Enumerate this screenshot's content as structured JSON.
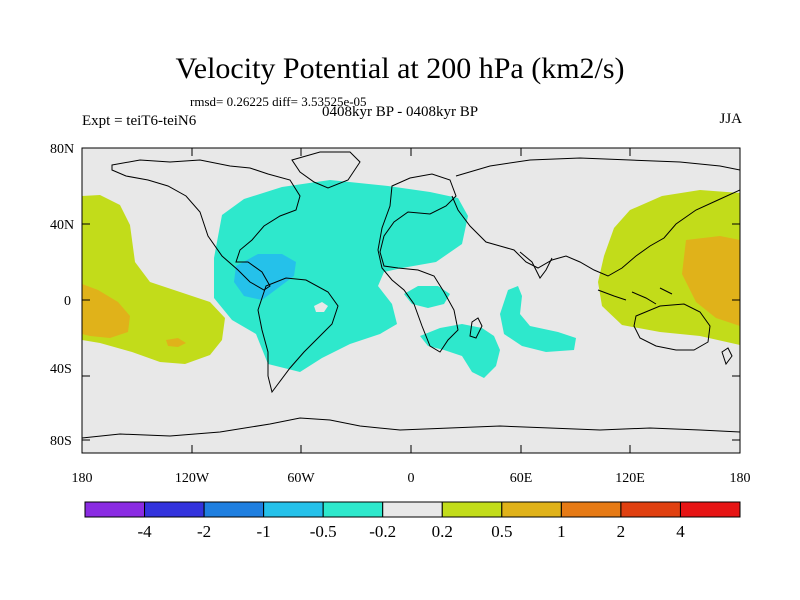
{
  "title": "Velocity Potential at 200 hPa (km2/s)",
  "stats": "rmsd= 0.26225 diff= 3.53525e-05",
  "left_label": "Expt = teiT6-teiN6",
  "center_label": "0408kyr BP - 0408kyr BP",
  "right_label": "JJA",
  "lat_ticks": [
    "80N",
    "40N",
    "0",
    "40S",
    "80S"
  ],
  "lon_ticks": [
    "180",
    "120W",
    "60W",
    "0",
    "60E",
    "120E",
    "180"
  ],
  "colorbar": {
    "colors": [
      "#8a2be2",
      "#3333dd",
      "#1f7fe0",
      "#25c1ea",
      "#2ee8cc",
      "#e8e8e8",
      "#c2dc1a",
      "#e0b21a",
      "#e67a15",
      "#e04010",
      "#e61414"
    ],
    "labels": [
      "-4",
      "-2",
      "-1",
      "-0.5",
      "-0.2",
      "0.2",
      "0.5",
      "1",
      "2",
      "4"
    ]
  },
  "colors": {
    "background": "#e8e8e8",
    "negative_1": "#2ee8cc",
    "negative_2": "#25c1ea",
    "positive_1": "#c2dc1a",
    "positive_2": "#e0b21a",
    "coast": "#000000"
  }
}
